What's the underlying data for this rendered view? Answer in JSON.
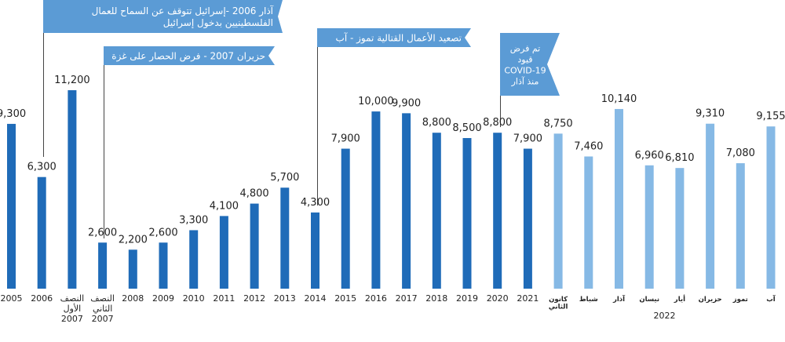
{
  "chart_data": {
    "type": "bar",
    "ylim": [
      0,
      11500
    ],
    "colors": {
      "annual": "#1f6bb8",
      "monthly": "#86b9e5",
      "callout": "#5b9bd5",
      "leader": "#444444"
    },
    "categories": [
      [
        "2005"
      ],
      [
        "2006"
      ],
      [
        "النصف",
        "الأول",
        "2007"
      ],
      [
        "النصف",
        "الثاني",
        "2007"
      ],
      [
        "2008"
      ],
      [
        "2009"
      ],
      [
        "2010"
      ],
      [
        "2011"
      ],
      [
        "2012"
      ],
      [
        "2013"
      ],
      [
        "2014"
      ],
      [
        "2015"
      ],
      [
        "2016"
      ],
      [
        "2017"
      ],
      [
        "2018"
      ],
      [
        "2019"
      ],
      [
        "2020"
      ],
      [
        "2021"
      ],
      [
        "كانون",
        "الثاني"
      ],
      [
        "شباط"
      ],
      [
        "آذار"
      ],
      [
        "نيسان"
      ],
      [
        "أيار"
      ],
      [
        "حزيران"
      ],
      [
        "تموز"
      ],
      [
        "آب"
      ]
    ],
    "value_labels": [
      "9,300",
      "6,300",
      "11,200",
      "2,600",
      "2,200",
      "2,600",
      "3,300",
      "4,100",
      "4,800",
      "5,700",
      "4,300",
      "7,900",
      "10,000",
      "9,900",
      "8,800",
      "8,500",
      "8,800",
      "7,900",
      "8,750",
      "7,460",
      "10,140",
      "6,960",
      "6,810",
      "9,310",
      "7,080",
      "9,155"
    ],
    "values": [
      9300,
      6300,
      11200,
      2600,
      2200,
      2600,
      3300,
      4100,
      4800,
      5700,
      4300,
      7900,
      10000,
      9900,
      8800,
      8500,
      8800,
      7900,
      8750,
      7460,
      10140,
      6960,
      6810,
      9310,
      7080,
      9155
    ],
    "series_kind": [
      "annual",
      "annual",
      "annual",
      "annual",
      "annual",
      "annual",
      "annual",
      "annual",
      "annual",
      "annual",
      "annual",
      "annual",
      "annual",
      "annual",
      "annual",
      "annual",
      "annual",
      "annual",
      "monthly",
      "monthly",
      "monthly",
      "monthly",
      "monthly",
      "monthly",
      "monthly",
      "monthly"
    ],
    "group_label": {
      "text": "2022",
      "from": 18,
      "to": 25
    },
    "annotations": [
      {
        "bar": 1,
        "lines": [
          "آذار 2006 -إسرائيل تتوقف عن السماح للعمال",
          "الفلسطينيين بدخول إسرائيل"
        ]
      },
      {
        "bar": 3,
        "lines": [
          "حزيران 2007 - فرض الحصار على غزة"
        ]
      },
      {
        "bar": 10,
        "lines": [
          "تصعيد الأعمال القتالية تموز - آب"
        ]
      },
      {
        "bar": 16,
        "lines": [
          "تم فرض",
          "قيود",
          "COVID-19",
          "منذ آذار"
        ]
      }
    ]
  }
}
